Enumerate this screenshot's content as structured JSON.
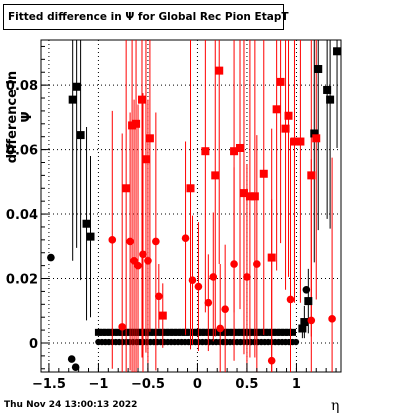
{
  "title": "Fitted difference in  Ψ  for Global Rec Pion EtapT",
  "timestamp": "Thu Nov 24 13:00:13 2022",
  "chart_data": {
    "type": "scatter",
    "xlabel": "η",
    "ylabel": "difference in Ψ",
    "xlim": [
      -1.58,
      1.45
    ],
    "ylim": [
      -0.009,
      0.094
    ],
    "xticks": [
      -1.5,
      -1,
      -0.5,
      0,
      0.5,
      1
    ],
    "xtick_labels": [
      "−1.5",
      "−1",
      "−0.5",
      "0",
      "0.5",
      "1"
    ],
    "yticks": [
      0,
      0.02,
      0.04,
      0.06,
      0.08
    ],
    "ytick_labels": [
      "0",
      "0.02",
      "0.04",
      "0.06",
      "0.08"
    ],
    "grid": true,
    "series": [
      {
        "marker": "square",
        "color": "#000000",
        "points": [
          {
            "x": -1.26,
            "y": 0.0755,
            "err": 0.05
          },
          {
            "x": -1.22,
            "y": 0.0795,
            "err": 0.05
          },
          {
            "x": -1.18,
            "y": 0.0645,
            "err": 0.045
          },
          {
            "x": -1.12,
            "y": 0.037,
            "err": 0.03
          },
          {
            "x": -1.08,
            "y": 0.033,
            "err": 0.025
          },
          {
            "x": 1.06,
            "y": 0.0045,
            "err": 0.003
          },
          {
            "x": 1.08,
            "y": 0.0065,
            "err": 0.005
          },
          {
            "x": 1.12,
            "y": 0.013,
            "err": 0.01
          },
          {
            "x": 1.18,
            "y": 0.065,
            "err": 0.04
          },
          {
            "x": 1.22,
            "y": 0.085,
            "err": 0.05
          },
          {
            "x": 1.31,
            "y": 0.0785,
            "err": 0.04
          },
          {
            "x": 1.34,
            "y": 0.0755,
            "err": 0.04
          },
          {
            "x": 1.41,
            "y": 0.0905,
            "err": 0.03
          }
        ]
      },
      {
        "marker": "circle",
        "color": "#000000",
        "points": [
          {
            "x": -1.48,
            "y": 0.0265,
            "err": 0.0
          },
          {
            "x": -1.27,
            "y": -0.005,
            "err": 0.0
          },
          {
            "x": -1.23,
            "y": -0.0075,
            "err": 0.0
          },
          {
            "x": 1.1,
            "y": 0.0165,
            "err": 0.0
          }
        ]
      },
      {
        "marker": "circle",
        "color": "#ff0000",
        "points": [
          {
            "x": -0.86,
            "y": 0.032,
            "err": 0.04
          },
          {
            "x": -0.76,
            "y": 0.005,
            "err": 0.06
          },
          {
            "x": -0.68,
            "y": 0.0315,
            "err": 0.04
          },
          {
            "x": -0.64,
            "y": 0.0255,
            "err": 0.05
          },
          {
            "x": -0.6,
            "y": 0.024,
            "err": 0.05
          },
          {
            "x": -0.55,
            "y": 0.0275,
            "err": 0.05
          },
          {
            "x": -0.5,
            "y": 0.0255,
            "err": 0.05
          },
          {
            "x": -0.42,
            "y": 0.0315,
            "err": 0.04
          },
          {
            "x": -0.39,
            "y": 0.0145,
            "err": 0.01
          },
          {
            "x": -0.12,
            "y": 0.0325,
            "err": 0.03
          },
          {
            "x": -0.05,
            "y": 0.0195,
            "err": 0.02
          },
          {
            "x": 0.01,
            "y": 0.0175,
            "err": 0.02
          },
          {
            "x": 0.11,
            "y": 0.0125,
            "err": 0.015
          },
          {
            "x": 0.16,
            "y": 0.0205,
            "err": 0.02
          },
          {
            "x": 0.23,
            "y": 0.0045,
            "err": 0.02
          },
          {
            "x": 0.28,
            "y": 0.0105,
            "err": 0.02
          },
          {
            "x": 0.37,
            "y": 0.0245,
            "err": 0.03
          },
          {
            "x": 0.5,
            "y": 0.0205,
            "err": 0.035
          },
          {
            "x": 0.6,
            "y": 0.0245,
            "err": 0.04
          },
          {
            "x": 0.75,
            "y": -0.0055,
            "err": 0.05
          },
          {
            "x": 0.94,
            "y": 0.0135,
            "err": 0.05
          },
          {
            "x": 1.15,
            "y": 0.007,
            "err": 0.05
          },
          {
            "x": 1.36,
            "y": 0.0075,
            "err": 0.05
          }
        ]
      },
      {
        "marker": "square",
        "color": "#ff0000",
        "points": [
          {
            "x": -0.72,
            "y": 0.048,
            "err": 0.08
          },
          {
            "x": -0.66,
            "y": 0.0675,
            "err": 0.08
          },
          {
            "x": -0.62,
            "y": 0.068,
            "err": 0.08
          },
          {
            "x": -0.56,
            "y": 0.0755,
            "err": 0.08
          },
          {
            "x": -0.52,
            "y": 0.057,
            "err": 0.06
          },
          {
            "x": -0.48,
            "y": 0.0635,
            "err": 0.06
          },
          {
            "x": -0.35,
            "y": 0.0085,
            "err": 0.01
          },
          {
            "x": -0.07,
            "y": 0.048,
            "err": 0.05
          },
          {
            "x": 0.08,
            "y": 0.0595,
            "err": 0.05
          },
          {
            "x": 0.18,
            "y": 0.052,
            "err": 0.05
          },
          {
            "x": 0.22,
            "y": 0.0845,
            "err": 0.06
          },
          {
            "x": 0.37,
            "y": 0.0595,
            "err": 0.05
          },
          {
            "x": 0.43,
            "y": 0.0605,
            "err": 0.05
          },
          {
            "x": 0.47,
            "y": 0.0465,
            "err": 0.05
          },
          {
            "x": 0.53,
            "y": 0.0455,
            "err": 0.05
          },
          {
            "x": 0.58,
            "y": 0.0455,
            "err": 0.05
          },
          {
            "x": 0.67,
            "y": 0.0525,
            "err": 0.05
          },
          {
            "x": 0.75,
            "y": 0.0265,
            "err": 0.04
          },
          {
            "x": 0.8,
            "y": 0.0725,
            "err": 0.05
          },
          {
            "x": 0.84,
            "y": 0.081,
            "err": 0.05
          },
          {
            "x": 0.89,
            "y": 0.0665,
            "err": 0.05
          },
          {
            "x": 0.92,
            "y": 0.0705,
            "err": 0.05
          },
          {
            "x": 0.98,
            "y": 0.0625,
            "err": 0.05
          },
          {
            "x": 1.04,
            "y": 0.0625,
            "err": 0.05
          },
          {
            "x": 1.15,
            "y": 0.052,
            "err": 0.05
          },
          {
            "x": 1.2,
            "y": 0.0635,
            "err": 0.05
          }
        ]
      }
    ]
  }
}
